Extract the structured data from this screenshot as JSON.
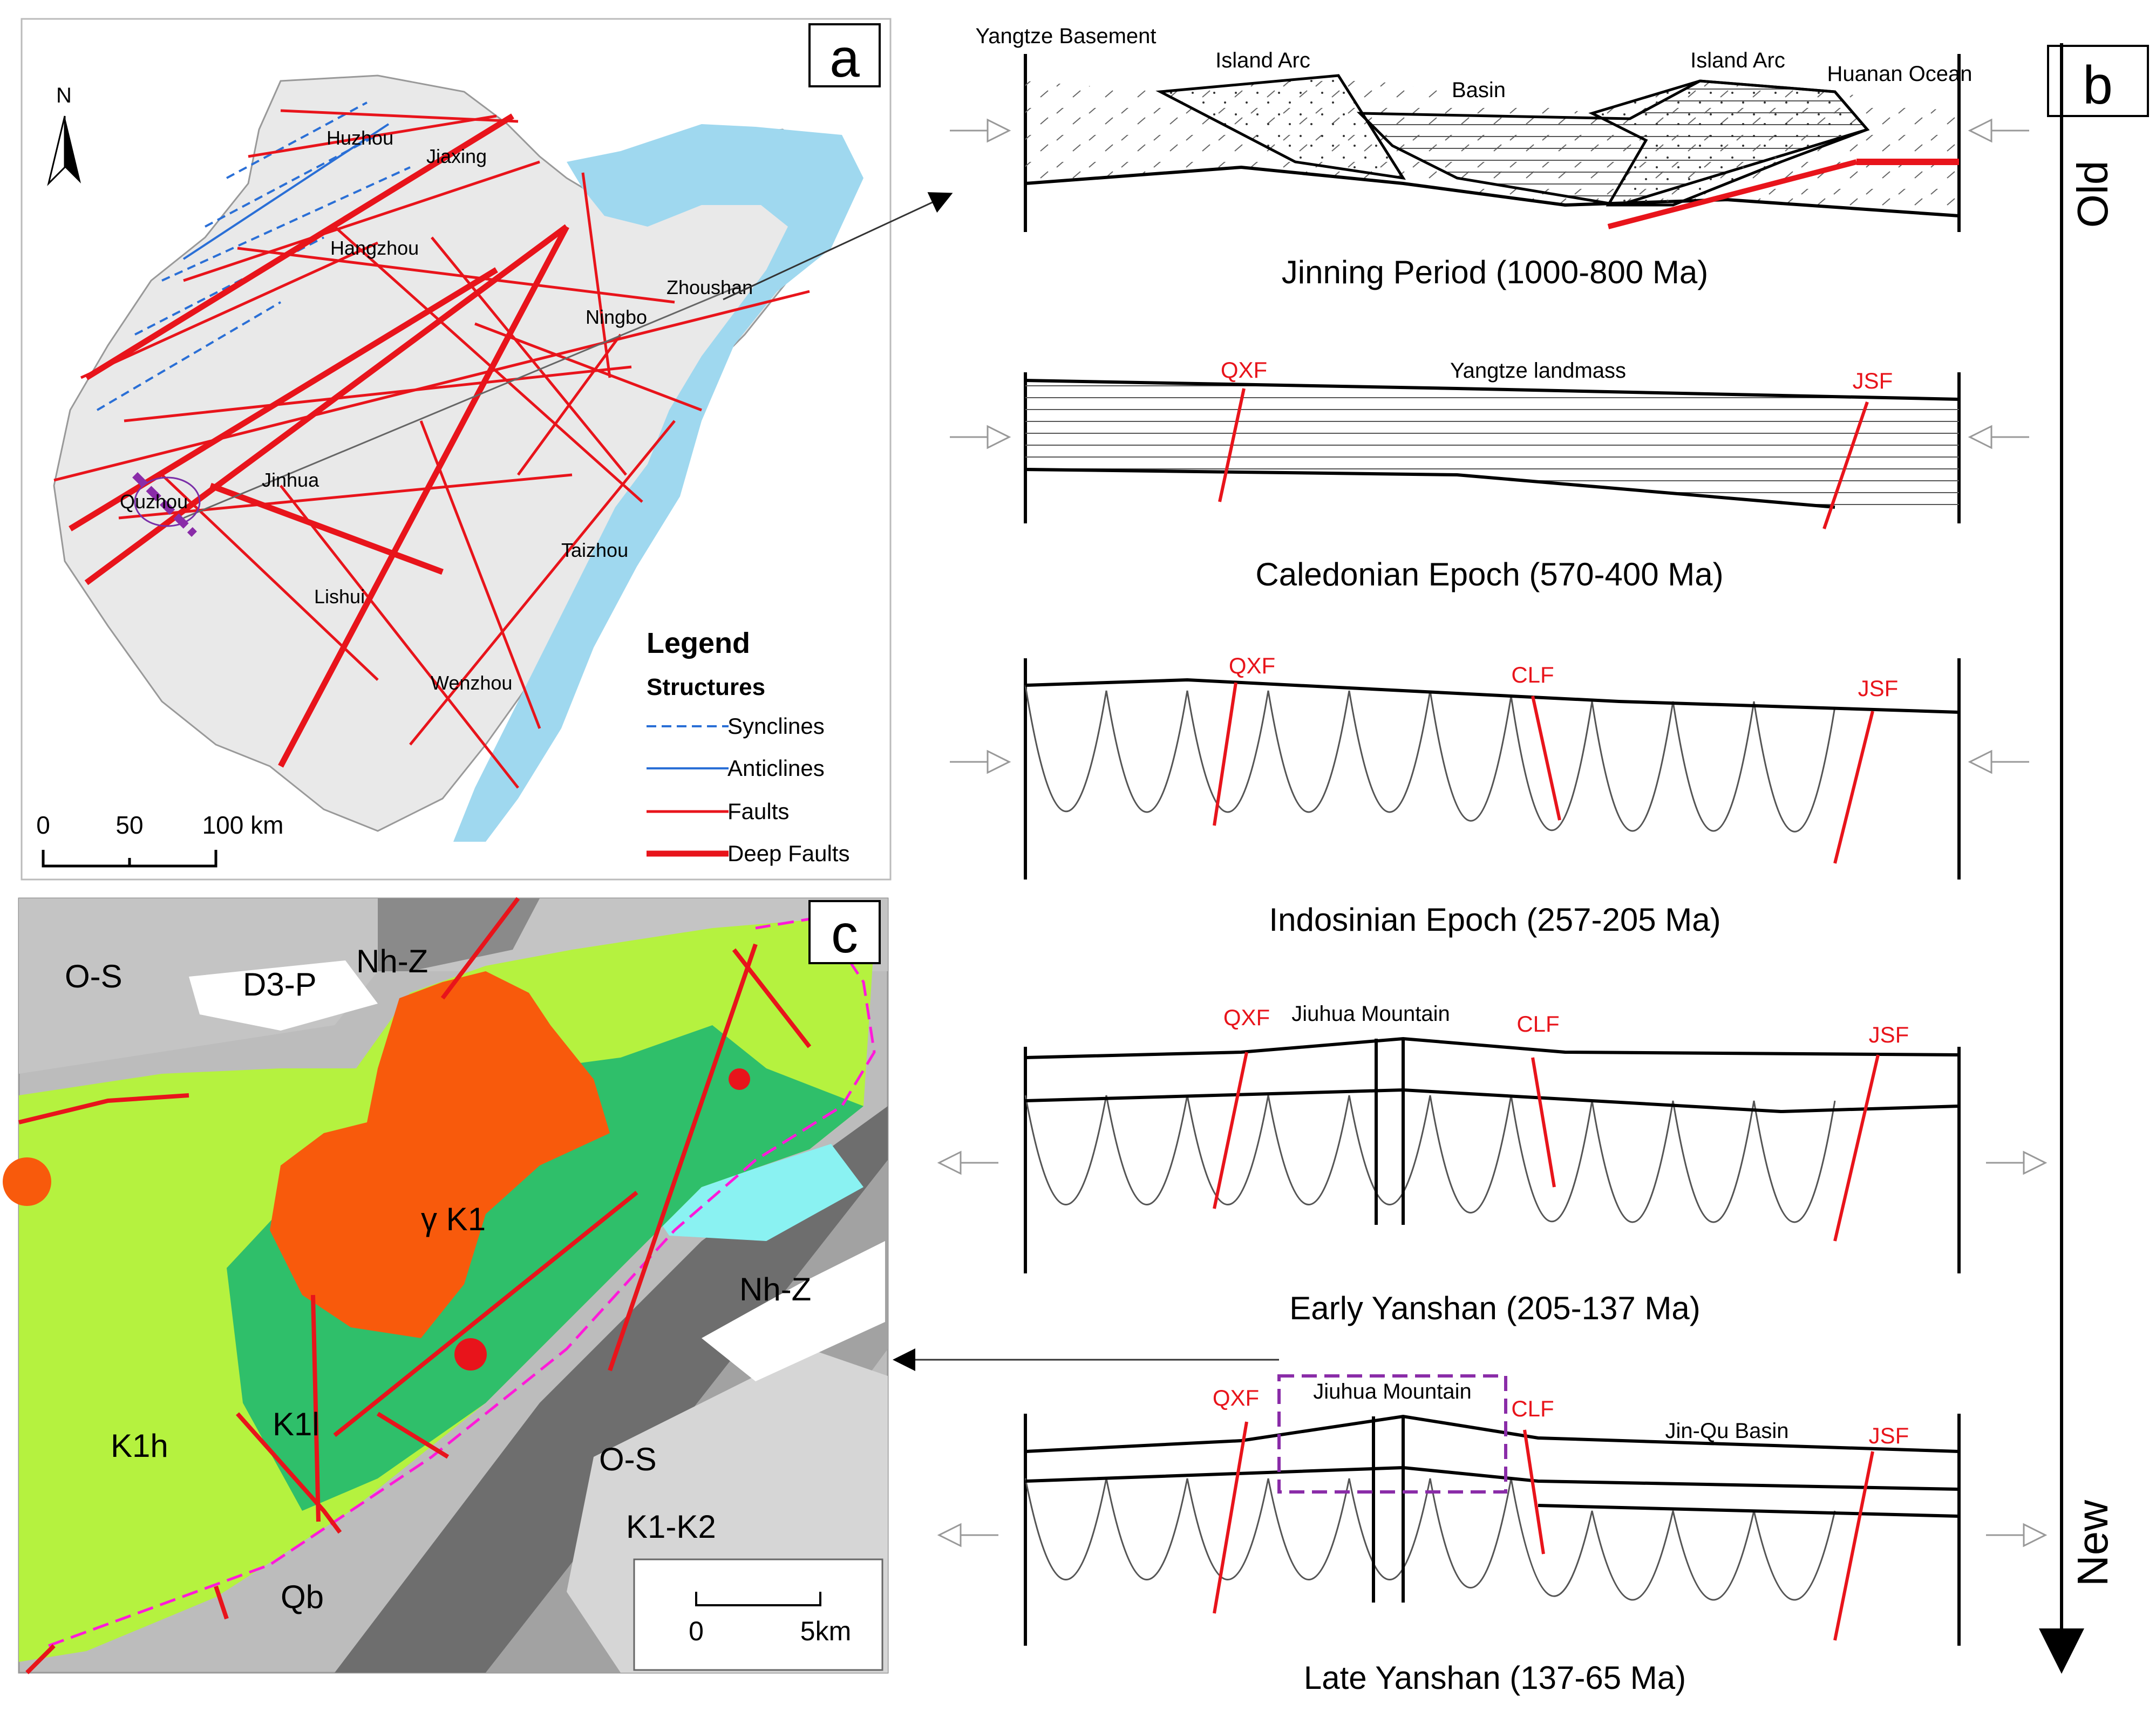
{
  "panels": {
    "a": {
      "letter": "a",
      "north": "N",
      "cities": [
        "Huzhou",
        "Jiaxing",
        "Hangzhou",
        "Zhoushan",
        "Ningbo",
        "Quzhou",
        "Jinhua",
        "Taizhou",
        "Lishui",
        "Wenzhou"
      ],
      "legend": {
        "title": "Legend",
        "subtitle": "Structures",
        "items": [
          {
            "label": "Synclines",
            "color": "#2a6fd6",
            "style": "dashed"
          },
          {
            "label": "Anticlines",
            "color": "#2a6fd6",
            "style": "solid"
          },
          {
            "label": "Faults",
            "color": "#e8141b",
            "style": "thin"
          },
          {
            "label": "Deep Faults",
            "color": "#e8141b",
            "style": "thick"
          }
        ]
      },
      "scale": {
        "ticks": [
          "0",
          "50",
          "100 km"
        ]
      }
    },
    "b": {
      "letter": "b",
      "time_old": "Old",
      "time_new": "New",
      "sections": [
        {
          "title": "Jinning Period  (1000-800 Ma)",
          "labels": [
            "Yangtze Basement",
            "Island Arc",
            "Basin",
            "Island Arc",
            "Huanan Ocean"
          ]
        },
        {
          "title": "Caledonian Epoch  (570-400 Ma)",
          "labels": [
            "QXF",
            "Yangtze landmass",
            "JSF"
          ]
        },
        {
          "title": "Indosinian Epoch  (257-205 Ma)",
          "labels": [
            "QXF",
            "CLF",
            "JSF"
          ]
        },
        {
          "title": "Early Yanshan  (205-137 Ma)",
          "labels": [
            "QXF",
            "Jiuhua Mountain",
            "CLF",
            "JSF"
          ]
        },
        {
          "title": "Late Yanshan  (137-65 Ma)",
          "labels": [
            "QXF",
            "Jiuhua Mountain",
            "CLF",
            "Jin-Qu Basin",
            "JSF"
          ]
        }
      ]
    },
    "c": {
      "letter": "c",
      "units": [
        "O-S",
        "D3-P",
        "Nh-Z",
        "γ K1",
        "Nh-Z",
        "K1l",
        "K1h",
        "O-S",
        "K1-K2",
        "Qb"
      ],
      "scale": {
        "ticks": [
          "0",
          "5km"
        ]
      }
    }
  },
  "colors": {
    "fault_red": "#e8141b",
    "sea": "#9fd8ef",
    "k1h_green": "#b5f23f",
    "k1l_green": "#2fbf6a",
    "granite_orange": "#f85a0c",
    "grey_dark": "#707070",
    "grey_mid": "#a8a8a8",
    "grey_light": "#d2d2d2",
    "cyan": "#8ef4f4",
    "dashed_box": "#8a2ca8"
  }
}
